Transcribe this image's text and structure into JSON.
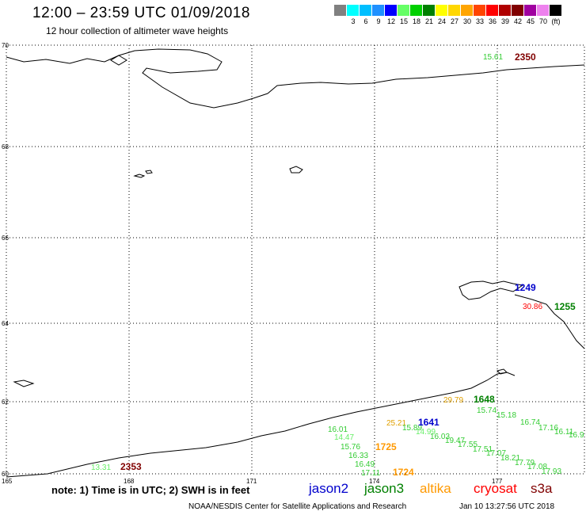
{
  "header": {
    "title": "12:00 – 23:59 UTC 01/09/2018",
    "subtitle": "12 hour collection of altimeter wave heights"
  },
  "legend": {
    "unit": "(ft)",
    "swatches": [
      {
        "label": "",
        "color": "#808080"
      },
      {
        "label": "3",
        "color": "#00ffff"
      },
      {
        "label": "6",
        "color": "#00bfff"
      },
      {
        "label": "9",
        "color": "#1e90ff"
      },
      {
        "label": "12",
        "color": "#0000ff"
      },
      {
        "label": "15",
        "color": "#66ff66"
      },
      {
        "label": "18",
        "color": "#00d000"
      },
      {
        "label": "21",
        "color": "#008000"
      },
      {
        "label": "24",
        "color": "#ffff00"
      },
      {
        "label": "27",
        "color": "#ffd700"
      },
      {
        "label": "30",
        "color": "#ffa500"
      },
      {
        "label": "33",
        "color": "#ff4500"
      },
      {
        "label": "36",
        "color": "#ff0000"
      },
      {
        "label": "39",
        "color": "#b00000"
      },
      {
        "label": "42",
        "color": "#800000"
      },
      {
        "label": "45",
        "color": "#a000a0"
      },
      {
        "label": "70",
        "color": "#ee82ee"
      },
      {
        "label": "",
        "color": "#000000"
      }
    ]
  },
  "axes": {
    "lat_labels": [
      "70",
      "68",
      "66",
      "64",
      "62",
      "60"
    ],
    "lon_labels": [
      "165",
      "168",
      "171",
      "174",
      "177"
    ]
  },
  "observations": [
    {
      "value": "15.61",
      "color": "#33cc33"
    },
    {
      "value": "30.86",
      "color": "#ff0000"
    },
    {
      "value": "29.79",
      "color": "#e0a000"
    },
    {
      "value": "15.74",
      "color": "#33cc33"
    },
    {
      "value": "15.18",
      "color": "#33cc33"
    },
    {
      "value": "16.74",
      "color": "#33cc33"
    },
    {
      "value": "17.16",
      "color": "#33cc33"
    },
    {
      "value": "16.11",
      "color": "#33cc33"
    },
    {
      "value": "16.9",
      "color": "#33cc33"
    },
    {
      "value": "25.21",
      "color": "#e0a000"
    },
    {
      "value": "15.89",
      "color": "#33cc33"
    },
    {
      "value": "14.99",
      "color": "#66ee66"
    },
    {
      "value": "16.03",
      "color": "#33cc33"
    },
    {
      "value": "19.47",
      "color": "#33cc33"
    },
    {
      "value": "17.55",
      "color": "#33cc33"
    },
    {
      "value": "17.51",
      "color": "#33cc33"
    },
    {
      "value": "17.07",
      "color": "#33cc33"
    },
    {
      "value": "18.21",
      "color": "#33cc33"
    },
    {
      "value": "17.79",
      "color": "#33cc33"
    },
    {
      "value": "17.08",
      "color": "#33cc33"
    },
    {
      "value": "17.93",
      "color": "#33cc33"
    },
    {
      "value": "16.01",
      "color": "#33cc33"
    },
    {
      "value": "14.47",
      "color": "#66ee66"
    },
    {
      "value": "15.76",
      "color": "#33cc33"
    },
    {
      "value": "16.33",
      "color": "#33cc33"
    },
    {
      "value": "16.49",
      "color": "#33cc33"
    },
    {
      "value": "17.11",
      "color": "#33cc33"
    },
    {
      "value": "13.31",
      "color": "#66ee66"
    }
  ],
  "pass_times": [
    {
      "time": "2350",
      "color": "#800000"
    },
    {
      "time": "1249",
      "color": "#0000cc"
    },
    {
      "time": "1255",
      "color": "#008000"
    },
    {
      "time": "1648",
      "color": "#008000"
    },
    {
      "time": "1641",
      "color": "#0000cc"
    },
    {
      "time": "1725",
      "color": "#ff9900"
    },
    {
      "time": "1724",
      "color": "#ff9900"
    },
    {
      "time": "2353",
      "color": "#800000"
    }
  ],
  "footer": {
    "note": "note:  1) Time is in UTC;  2) SWH is in feet",
    "satellites": [
      {
        "name": "jason2",
        "color": "#0000cc"
      },
      {
        "name": "jason3",
        "color": "#008000"
      },
      {
        "name": "altika",
        "color": "#ff9900"
      },
      {
        "name": "cryosat",
        "color": "#ff0000"
      },
      {
        "name": "s3a",
        "color": "#800000"
      }
    ],
    "credit": "NOAA/NESDIS Center for Satellite Applications and Research",
    "timestamp": "Jan 10 13:27:56 UTC 2018"
  }
}
